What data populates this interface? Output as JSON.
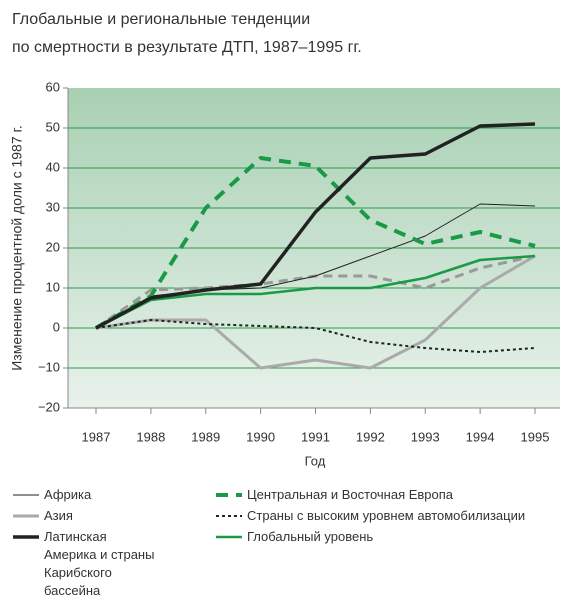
{
  "chart_data": {
    "type": "line",
    "title": [
      "Глобальные и региональные тенденции",
      "по смертности в результате ДТП, 1987–1995 гг."
    ],
    "y_label": "Изменение процентной доли с 1987 г.",
    "x_label": "Год",
    "categories": [
      "1987",
      "1988",
      "1989",
      "1990",
      "1991",
      "1992",
      "1993",
      "1994",
      "1995"
    ],
    "ylim": [
      -20,
      60
    ],
    "yticks": [
      {
        "value": -20,
        "label": "−20"
      },
      {
        "value": -10,
        "label": "−10"
      },
      0,
      10,
      20,
      30,
      40,
      50,
      60
    ],
    "grid": true,
    "series": [
      {
        "name": "Африка",
        "color": "#222222",
        "line_style": "solid",
        "width": 1,
        "values": [
          0,
          8,
          9.5,
          10,
          13,
          18,
          23,
          31,
          30.5
        ]
      },
      {
        "name": "Азия",
        "color": "#aaaaaa",
        "line_style": "solid",
        "width": 3,
        "values": [
          0,
          2,
          2,
          -10,
          -8,
          -10,
          -3,
          10,
          18
        ]
      },
      {
        "name": "Латинская Америка и страны Карибского бассейна",
        "color": "#222222",
        "line_style": "solid",
        "width": 3.5,
        "values": [
          0,
          7.5,
          9.5,
          11,
          29,
          42.5,
          43.5,
          50.5,
          51
        ]
      },
      {
        "name": "Центральная и Восточная Европа",
        "color": "#1a9a47",
        "line_style": "dashed",
        "width": 4,
        "values": [
          0,
          8,
          30,
          42.5,
          40.5,
          27,
          21,
          24,
          20.5
        ]
      },
      {
        "name": "Страны с высоким уровнем автомобилизации",
        "color": "#222222",
        "line_style": "dotted",
        "width": 2,
        "values": [
          0,
          2,
          1,
          0.5,
          0,
          -3.5,
          -5,
          -6,
          -5
        ]
      },
      {
        "name": "Глобальный уровень",
        "color": "#1a9a47",
        "line_style": "solid",
        "width": 2.5,
        "values": [
          0,
          7,
          8.5,
          8.5,
          10,
          10,
          12.5,
          17,
          18
        ]
      },
      {
        "color": "#999999",
        "line_style": "dashed",
        "width": 3,
        "values": [
          0,
          9.5,
          10,
          11,
          13,
          13,
          10,
          15,
          18
        ]
      }
    ]
  }
}
